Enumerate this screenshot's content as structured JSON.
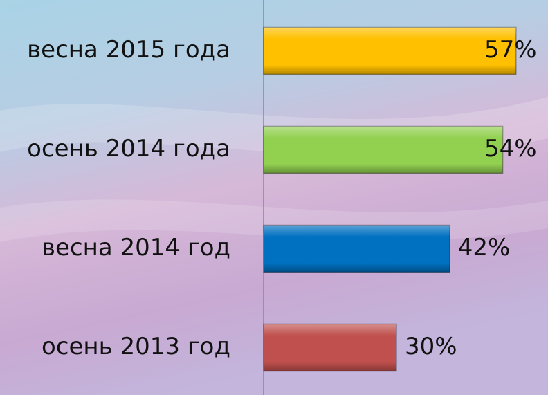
{
  "chart_data": {
    "type": "bar",
    "orientation": "horizontal",
    "categories": [
      "весна 2015 года",
      "осень 2014 года",
      "весна 2014 год",
      "осень 2013 год"
    ],
    "values": [
      57,
      54,
      42,
      30
    ],
    "value_labels": [
      "57%",
      "54%",
      "42%",
      "30%"
    ],
    "colors": [
      "#ffc000",
      "#92d050",
      "#0070c0",
      "#c0504d"
    ]
  }
}
